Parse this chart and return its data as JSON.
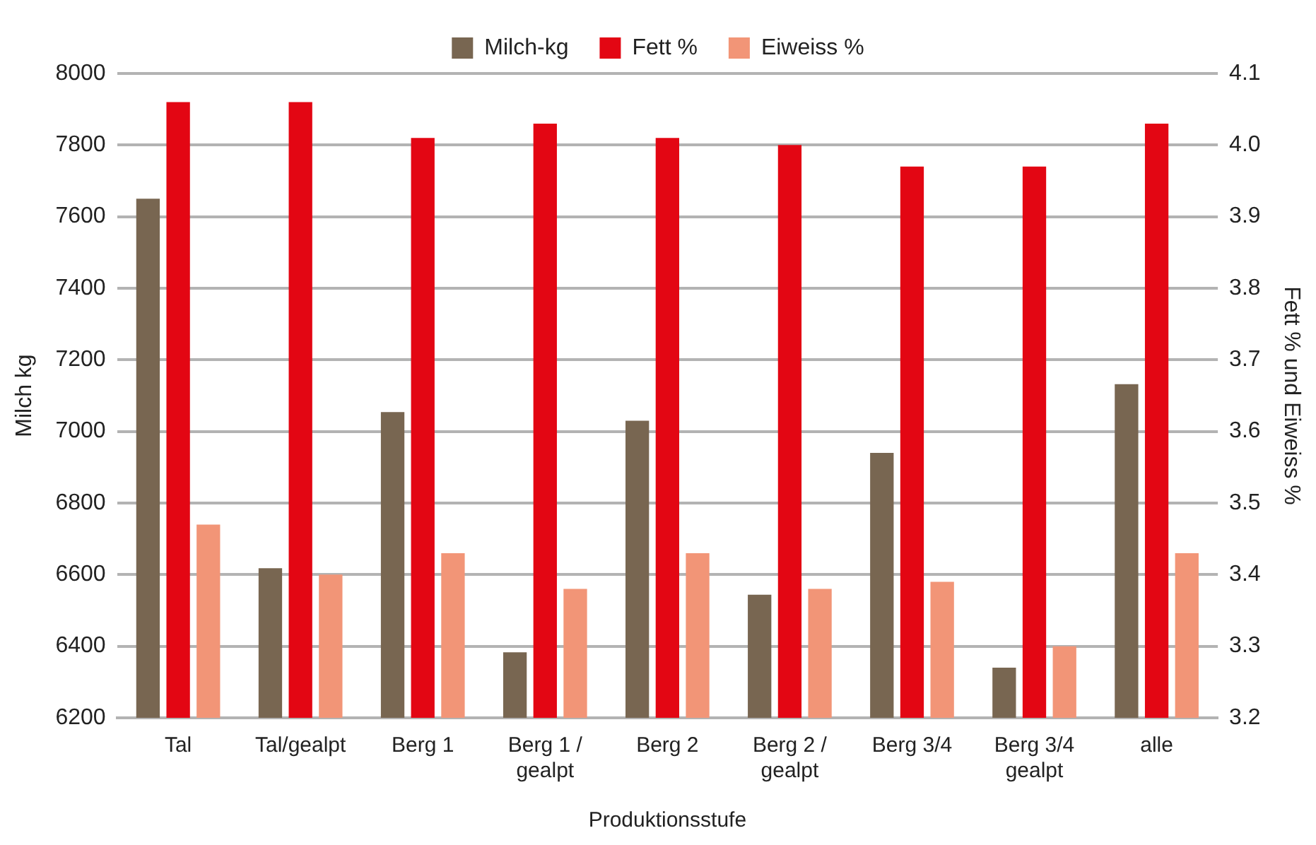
{
  "chart_data": {
    "type": "bar",
    "xlabel": "Produktionsstufe",
    "ylabel": "Milch kg",
    "y2label": "Fett % und Eiweiss %",
    "categories": [
      "Tal",
      "Tal/gealpt",
      "Berg 1",
      "Berg 1 / gealpt",
      "Berg 2",
      "Berg 2 / gealpt",
      "Berg 3/4",
      "Berg 3/4 gealpt",
      "alle"
    ],
    "series": [
      {
        "name": "Milch-kg",
        "color": "#786651",
        "values": [
          7650,
          6618,
          7054,
          6383,
          7030,
          6544,
          6940,
          6340,
          7132
        ]
      },
      {
        "name": "Fett %",
        "color": "#e30613",
        "axis": "y2",
        "values": [
          4.06,
          4.06,
          4.01,
          4.03,
          4.01,
          4.0,
          3.97,
          3.97,
          4.03
        ]
      },
      {
        "name": "Eiweiss %",
        "color": "#f29577",
        "axis": "y2",
        "values": [
          3.47,
          3.4,
          3.43,
          3.38,
          3.43,
          3.38,
          3.39,
          3.3,
          3.43
        ]
      }
    ],
    "ylim": [
      6200,
      8000
    ],
    "yticks": [
      6200,
      6400,
      6600,
      6800,
      7000,
      7200,
      7400,
      7600,
      7800,
      8000
    ],
    "y2lim": [
      3.2,
      4.1
    ],
    "y2ticks": [
      3.2,
      3.3,
      3.4,
      3.5,
      3.6,
      3.7,
      3.8,
      3.9,
      {
        "value": 4,
        "label": "4.0"
      },
      4.1
    ],
    "grid": "y",
    "legend": "top"
  }
}
